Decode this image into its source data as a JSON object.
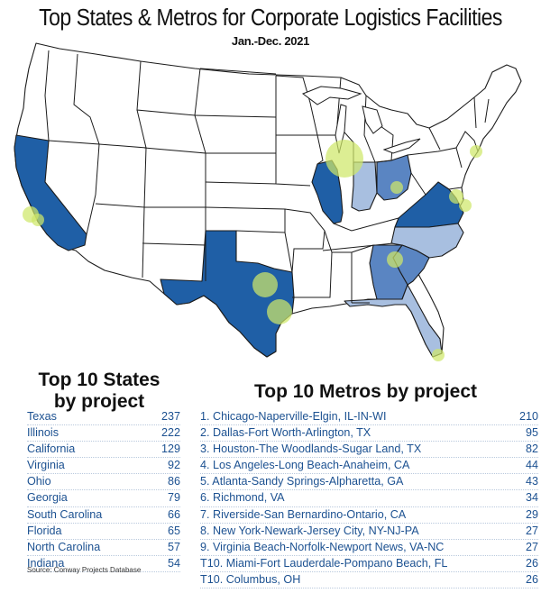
{
  "title": "Top States & Metros for Corporate Logistics Facilities",
  "subtitle": "Jan.-Dec. 2021",
  "colors": {
    "dark": "#1f5fa6",
    "medium": "#5a85c2",
    "light": "#a8bfe0",
    "outline": "#1b1b1b",
    "metro_bubble": "#cfe76a",
    "list_text": "#1c5191"
  },
  "map": {
    "highlighted_states": [
      {
        "state": "Texas",
        "shade": "dark"
      },
      {
        "state": "Illinois",
        "shade": "dark"
      },
      {
        "state": "California",
        "shade": "dark"
      },
      {
        "state": "Virginia",
        "shade": "dark"
      },
      {
        "state": "Ohio",
        "shade": "dark"
      },
      {
        "state": "Georgia",
        "shade": "medium"
      },
      {
        "state": "South Carolina",
        "shade": "medium"
      },
      {
        "state": "Florida",
        "shade": "light"
      },
      {
        "state": "North Carolina",
        "shade": "light"
      },
      {
        "state": "Indiana",
        "shade": "light"
      }
    ]
  },
  "states": {
    "heading": "Top 10 States by project",
    "items": [
      {
        "name": "Texas",
        "value": "237"
      },
      {
        "name": "Illinois",
        "value": "222"
      },
      {
        "name": "California",
        "value": "129"
      },
      {
        "name": "Virginia",
        "value": "92"
      },
      {
        "name": "Ohio",
        "value": "86"
      },
      {
        "name": "Georgia",
        "value": "79"
      },
      {
        "name": "South Carolina",
        "value": "66"
      },
      {
        "name": "Florida",
        "value": "65"
      },
      {
        "name": "North Carolina",
        "value": "57"
      },
      {
        "name": "Indiana",
        "value": "54"
      }
    ]
  },
  "metros": {
    "heading": "Top 10 Metros by project",
    "items": [
      {
        "name": "1. Chicago-Naperville-Elgin, IL-IN-WI",
        "value": "210"
      },
      {
        "name": "2. Dallas-Fort Worth-Arlington, TX",
        "value": "95"
      },
      {
        "name": "3. Houston-The Woodlands-Sugar Land, TX",
        "value": "82"
      },
      {
        "name": "4. Los Angeles-Long Beach-Anaheim, CA",
        "value": "44"
      },
      {
        "name": "5. Atlanta-Sandy Springs-Alpharetta, GA",
        "value": "43"
      },
      {
        "name": "6. Richmond, VA",
        "value": "34"
      },
      {
        "name": "7. Riverside-San Bernardino-Ontario, CA",
        "value": "29"
      },
      {
        "name": "8. New York-Newark-Jersey City, NY-NJ-PA",
        "value": "27"
      },
      {
        "name": "9. Virginia Beach-Norfolk-Newport News, VA-NC",
        "value": "27"
      },
      {
        "name": "T10. Miami-Fort Lauderdale-Pompano Beach, FL",
        "value": "26"
      },
      {
        "name": "T10. Columbus, OH",
        "value": "26"
      }
    ]
  },
  "source": "Source: Conway Projects Database"
}
